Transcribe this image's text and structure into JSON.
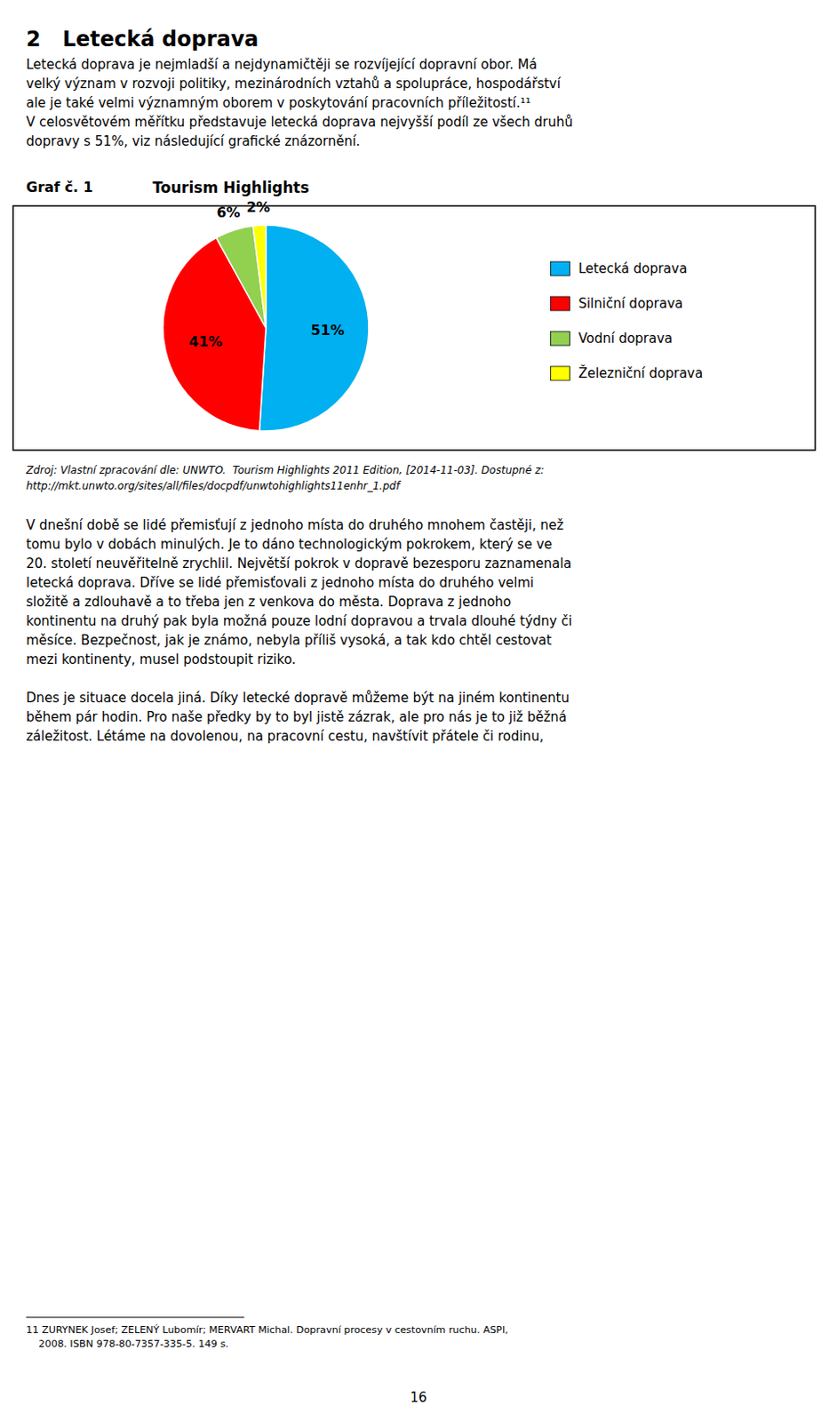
{
  "page_title": "2   Letecká doprava",
  "paragraphs": [
    [
      "Letecká doprava je nejmladší a nejdynamičtěji se rozvíjející dopravní obor. Má",
      "velký význam v rozvoji politiky, mezinárodních vztahů a spolupráce, hospodářství",
      "ale je také velmi významným oborem v poskytování pracovních příležitostí.¹¹",
      "V celosvětovém měřítku představuje letecká doprava nejvyšší podíl ze všech druhů",
      "dopravy s 51%, viz následující grafické znázornění."
    ]
  ],
  "chart_label": "Graf č. 1",
  "chart_data": {
    "type": "pie",
    "title": "Tourism Highlights",
    "categories": [
      "Letecká doprava",
      "Silniční doprava",
      "Vodní doprava",
      "Železniční doprava"
    ],
    "values": [
      51,
      41,
      6,
      2
    ],
    "value_labels": [
      "51%",
      "41%",
      "6%",
      "2%"
    ],
    "colors": [
      "#00B0F0",
      "#FF0000",
      "#92D050",
      "#FFFF00"
    ],
    "data_labels": true,
    "legend": "right"
  },
  "source_text": [
    "Zdroj: Vlastní zpracování dle: UNWTO.  Tourism Highlights 2011 Edition, [2014-11-03]. Dostupné z:",
    "http://mkt.unwto.org/sites/all/files/docpdf/unwtohighlights11enhr_1.pdf"
  ],
  "paragraphs2": [
    [
      "V dnešní době se lidé přemisťují z jednoho místa do druhého mnohem častěji, než",
      "tomu bylo v dobách minulých. Je to dáno technologickým pokrokem, který se ve",
      "20. století neuvěřitelně zrychlil. Největší pokrok v dopravě bezesporu zaznamenala",
      "letecká doprava. Dříve se lidé přemisťovali z jednoho místa do druhého velmi",
      "složitě a zdlouhavě a to třeba jen z venkova do města. Doprava z jednoho",
      "kontinentu na druhý pak byla možná pouze lodní dopravou a trvala dlouhé týdny či",
      "měsíce. Bezpečnost, jak je známo, nebyla příliš vysoká, a tak kdo chtěl cestovat",
      "mezi kontinenty, musel podstoupit riziko."
    ],
    [
      "Dnes je situace docela jiná. Díky letecké dopravě můžeme být na jiném kontinentu",
      "během pár hodin. Pro naše předky by to byl jistě zázrak, ale pro nás je to již běžná",
      "záležitost. Létáme na dovolenou, na pracovní cestu, navštívit přátele či rodinu,"
    ]
  ],
  "footnote": [
    "11 ZURYNEK Josef; ZELENÝ Lubomír; MERVART Michal. Dopravní procesy v cestovním ruchu. ASPI,",
    "    2008. ISBN 978-80-7357-335-5. 149 s."
  ],
  "page_number": "16"
}
